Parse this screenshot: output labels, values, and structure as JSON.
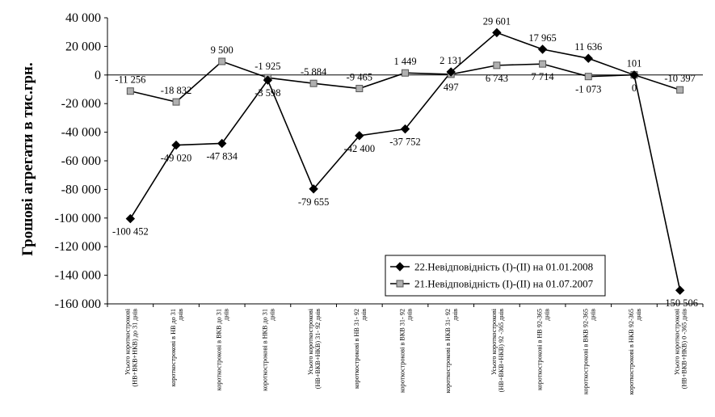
{
  "chart_data": {
    "type": "line",
    "title": "",
    "xlabel": "",
    "ylabel": "Грошові агрегати в тис.грн.",
    "ylim": [
      -160000,
      40000
    ],
    "ytick_step": 20000,
    "ytick_labels": [
      "40 000",
      "20 000",
      "0",
      "-20 000",
      "-40 000",
      "-60 000",
      "-80 000",
      "-100 000",
      "-120 000",
      "-140 000",
      "-160 000"
    ],
    "grid": false,
    "legend_position": "bottom-right",
    "categories": [
      [
        "Усього короткострокові",
        "(НВ+ВКВ+НКВ) до 31 днів"
      ],
      [
        "короткострокові в НВ до 31",
        "днів"
      ],
      [
        "короткострокові в ВКВ до 31",
        "днів"
      ],
      [
        "короткострокові в НКВ до 31",
        "днів"
      ],
      [
        "Усього короткострокові",
        "(НВ+ВКВ+НКВ) 31- 92 днів"
      ],
      [
        "короткострокові в НВ 31- 92",
        "днів"
      ],
      [
        "короткострокові в ВКВ 31- 92",
        "днів"
      ],
      [
        "короткострокові в НКВ 31- 92",
        "днів"
      ],
      [
        "Усього короткострокові",
        "(НВ+ВКВ+НКВ) 92 -365 днів"
      ],
      [
        "короткострокові в НВ 92-365",
        "днів"
      ],
      [
        "короткострокові в ВКВ 92-365",
        "днів"
      ],
      [
        "короткострокові в НКВ 92-365",
        "днів"
      ],
      [
        "Усього короткострокові",
        "(НВ+ВКВ+НКВ) 0 -365 днів"
      ]
    ],
    "series": [
      {
        "name": "22.Невідповідність (І)-(ІІ) на 01.01.2008",
        "marker": "diamond",
        "color": "#000000",
        "values": [
          -100452,
          -49020,
          -47834,
          -3598,
          -79655,
          -42400,
          -37752,
          2131,
          29601,
          17965,
          11636,
          0,
          -150506
        ],
        "labels": [
          "-100 452",
          "-49 020",
          "-47 834",
          "-3 598",
          "-79 655",
          "-42 400",
          "-37 752",
          "2 131",
          "29 601",
          "17 965",
          "11 636",
          "0",
          "-150 506"
        ]
      },
      {
        "name": "21.Невідповідність (І)-(ІІ) на 01.07.2007",
        "marker": "square",
        "color": "#b0b0b0",
        "values": [
          -11256,
          -18832,
          9500,
          -1925,
          -5884,
          -9465,
          1449,
          497,
          6743,
          7714,
          -1073,
          101,
          -10397
        ],
        "labels": [
          "-11 256",
          "-18 832",
          "9 500",
          "-1 925",
          "-5 884",
          "-9 465",
          "1 449",
          "497",
          "6 743",
          "7 714",
          "-1 073",
          "101",
          "-10 397"
        ]
      }
    ]
  }
}
